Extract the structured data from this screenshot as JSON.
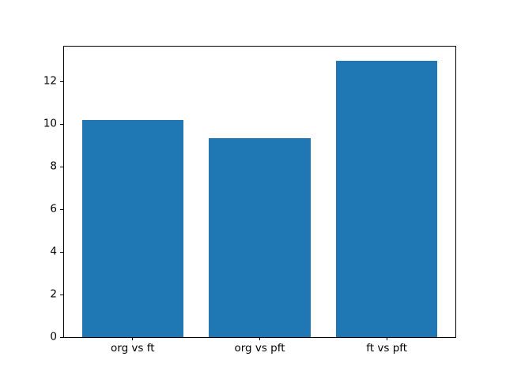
{
  "figure": {
    "background_color": "#ffffff",
    "spine_color": "#000000",
    "tick_color": "#000000",
    "tick_label_color": "#000000"
  },
  "chart_data": {
    "type": "bar",
    "title": "",
    "xlabel": "",
    "ylabel": "",
    "categories": [
      "org vs ft",
      "org vs pft",
      "ft vs pft"
    ],
    "values": [
      10.2,
      9.35,
      13.0
    ],
    "bar_color": "#1f77b4",
    "bar_width": 0.8,
    "xlim": [
      -0.54,
      2.54
    ],
    "ylim": [
      0,
      13.65
    ],
    "yticks": [
      0,
      2,
      4,
      6,
      8,
      10,
      12
    ],
    "grid": false,
    "legend": null
  }
}
